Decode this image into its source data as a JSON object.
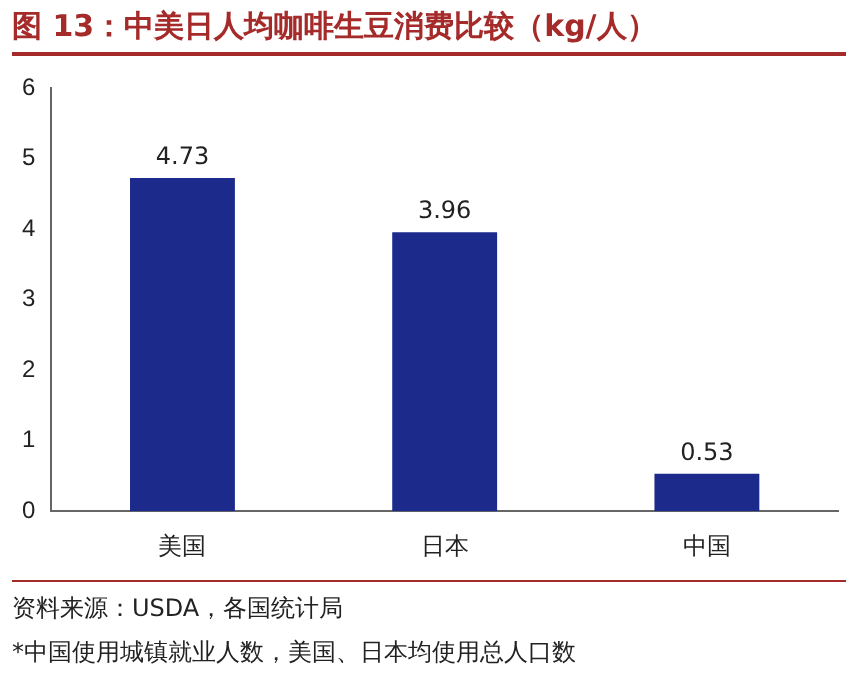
{
  "chart_data": {
    "type": "bar",
    "title": "图 13：中美日人均咖啡生豆消费比较（kg/人）",
    "categories": [
      "美国",
      "日本",
      "中国"
    ],
    "values": [
      4.73,
      3.96,
      0.53
    ],
    "color": "#1c2a8c",
    "ylim": [
      0,
      6
    ],
    "yticks": [
      0,
      1,
      2,
      3,
      4,
      5,
      6
    ],
    "grid": false,
    "legend": false,
    "data_labels": true,
    "annotations": [
      "资料来源：USDA，各国统计局",
      "*中国使用城镇就业人数，美国、日本均使用总人口数"
    ]
  }
}
